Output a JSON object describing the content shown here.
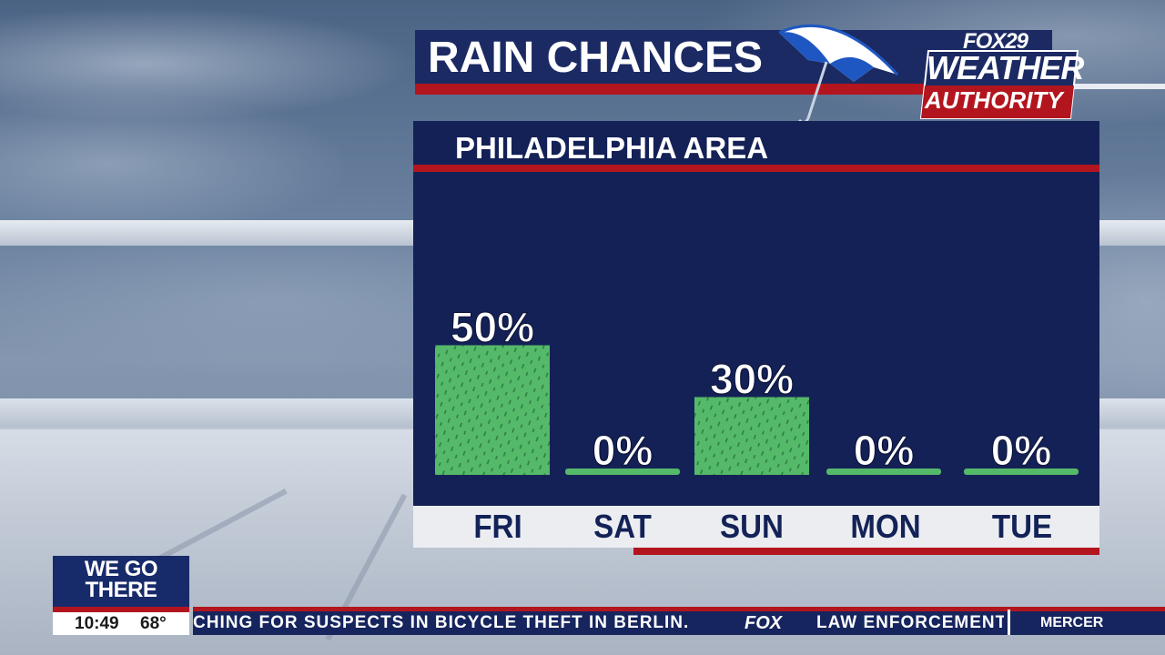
{
  "header": {
    "title": "RAIN CHANCES",
    "logo": {
      "top": "FOX29",
      "middle": "WEATHER",
      "bottom": "AUTHORITY"
    }
  },
  "panel": {
    "subtitle": "PHILADELPHIA AREA"
  },
  "chart_data": {
    "type": "bar",
    "title": "RAIN CHANCES",
    "subtitle": "PHILADELPHIA AREA",
    "categories": [
      "FRI",
      "SAT",
      "SUN",
      "MON",
      "TUE"
    ],
    "values": [
      50,
      0,
      30,
      0,
      0
    ],
    "value_labels": [
      "50%",
      "0%",
      "30%",
      "0%",
      "0%"
    ],
    "unit": "%",
    "ylim": [
      0,
      100
    ],
    "grid": false,
    "colors": {
      "bar": "#55b96a",
      "panel": "#142156",
      "label": "#ffffff"
    }
  },
  "lower_third": {
    "brand_line1": "WE GO",
    "brand_line2": "THERE",
    "time": "10:49",
    "temperature": "68°",
    "ticker_text": "CHING FOR SUSPECTS IN BICYCLE THEFT IN BERLIN.",
    "ticker_logo": "FOX",
    "ticker_text2": "LAW ENFORCEMENT",
    "ticker_right": "MERCER"
  },
  "icons": [
    "umbrella-icon",
    "fox29-weather-authority-logo"
  ]
}
